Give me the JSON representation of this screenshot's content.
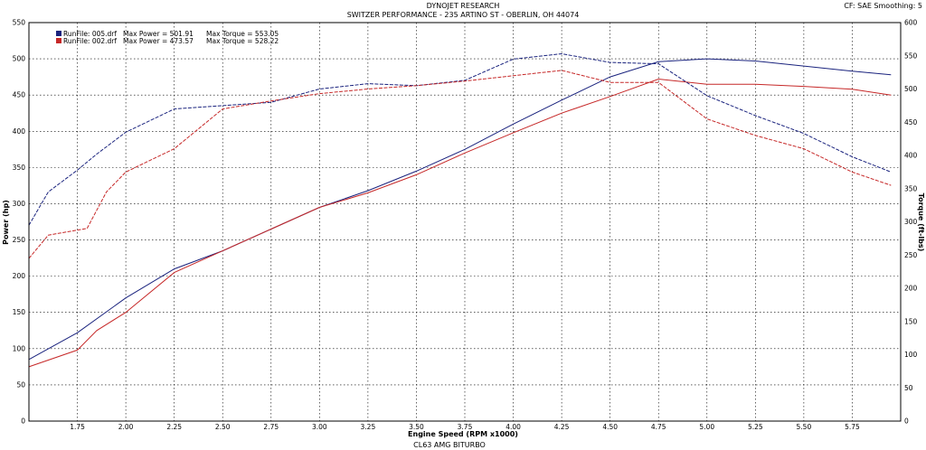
{
  "header": {
    "title": "DYNOJET RESEARCH",
    "subtitle": "SWITZER PERFORMANCE - 235 ARTINO ST - OBERLIN, OH 44074",
    "cf_label": "CF: SAE  Smoothing: 5"
  },
  "footer": {
    "vehicle": "CL63 AMG BITURBO"
  },
  "legend": [
    {
      "file": "RunFile: 005.drf",
      "power": "Max Power = 501.91",
      "torque": "Max Torque = 553.05",
      "color": "#1a237e"
    },
    {
      "file": "RunFile: 002.drf",
      "power": "Max Power = 473.57",
      "torque": "Max Torque = 528.22",
      "color": "#c62828"
    }
  ],
  "chart_data": {
    "type": "line",
    "xlabel": "Engine Speed (RPM x1000)",
    "ylabel_left": "Power (hp)",
    "ylabel_right": "Torque (ft-lbs)",
    "xlim": [
      1.5,
      6.0
    ],
    "ylim_left": [
      0,
      550
    ],
    "ylim_right": [
      0,
      600
    ],
    "x_ticks": [
      "1.75",
      "2.00",
      "2.25",
      "2.50",
      "2.75",
      "3.00",
      "3.25",
      "3.50",
      "3.75",
      "4.00",
      "4.25",
      "4.50",
      "4.75",
      "5.00",
      "5.25",
      "5.50",
      "5.75"
    ],
    "x_tick_values": [
      1.75,
      2.0,
      2.25,
      2.5,
      2.75,
      3.0,
      3.25,
      3.5,
      3.75,
      4.0,
      4.25,
      4.5,
      4.75,
      5.0,
      5.25,
      5.5,
      5.75
    ],
    "y_ticks_left": [
      0,
      50,
      100,
      150,
      200,
      250,
      300,
      350,
      400,
      450,
      500,
      550
    ],
    "y_ticks_right": [
      0,
      50,
      100,
      150,
      200,
      250,
      300,
      350,
      400,
      450,
      500,
      550,
      600
    ],
    "grid": true,
    "series": [
      {
        "name": "Power 005.drf",
        "axis": "left",
        "color": "#1a237e",
        "x": [
          1.5,
          1.75,
          2.0,
          2.25,
          2.5,
          2.75,
          3.0,
          3.25,
          3.5,
          3.75,
          4.0,
          4.25,
          4.5,
          4.75,
          5.0,
          5.25,
          5.5,
          5.75,
          5.95
        ],
        "y": [
          85,
          122,
          170,
          210,
          235,
          265,
          295,
          318,
          345,
          375,
          410,
          443,
          475,
          496,
          500,
          497,
          490,
          483,
          478
        ]
      },
      {
        "name": "Power 002.drf",
        "axis": "left",
        "color": "#c62828",
        "x": [
          1.5,
          1.75,
          1.85,
          2.0,
          2.25,
          2.5,
          2.75,
          3.0,
          3.25,
          3.5,
          3.75,
          4.0,
          4.25,
          4.5,
          4.75,
          5.0,
          5.25,
          5.5,
          5.75,
          5.95
        ],
        "y": [
          75,
          98,
          125,
          150,
          205,
          235,
          265,
          295,
          315,
          340,
          370,
          398,
          425,
          448,
          472,
          465,
          465,
          462,
          458,
          450
        ]
      },
      {
        "name": "Torque 005.drf",
        "axis": "right",
        "color": "#1a237e",
        "x": [
          1.5,
          1.6,
          1.75,
          1.85,
          2.0,
          2.25,
          2.5,
          2.75,
          3.0,
          3.25,
          3.5,
          3.75,
          4.0,
          4.25,
          4.5,
          4.75,
          5.0,
          5.25,
          5.5,
          5.75,
          5.95
        ],
        "y": [
          295,
          345,
          378,
          402,
          435,
          470,
          475,
          480,
          500,
          508,
          505,
          513,
          545,
          553,
          540,
          538,
          490,
          460,
          433,
          398,
          375
        ]
      },
      {
        "name": "Torque 002.drf",
        "axis": "right",
        "color": "#c62828",
        "x": [
          1.5,
          1.6,
          1.7,
          1.8,
          1.9,
          2.0,
          2.25,
          2.5,
          2.75,
          3.0,
          3.25,
          3.5,
          3.75,
          4.0,
          4.25,
          4.5,
          4.75,
          5.0,
          5.25,
          5.5,
          5.75,
          5.95
        ],
        "y": [
          245,
          280,
          285,
          290,
          345,
          375,
          410,
          470,
          482,
          493,
          500,
          505,
          512,
          520,
          528,
          510,
          510,
          455,
          430,
          410,
          375,
          355
        ]
      }
    ]
  }
}
